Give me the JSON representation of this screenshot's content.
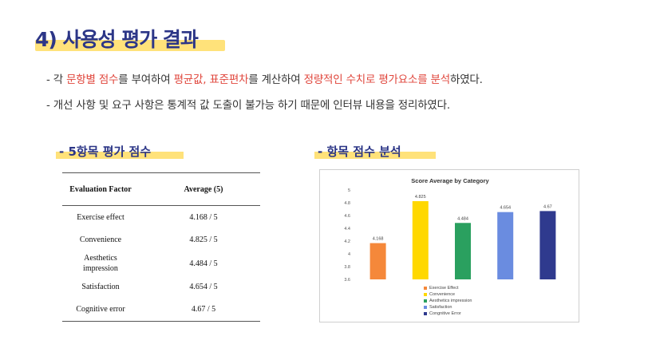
{
  "title": "4) 사용성 평가 결과",
  "bullets": {
    "b1": {
      "p1": "- 각 ",
      "p2": "문항별 점수",
      "p3": "를 부여하여 ",
      "p4": "평균값, 표준편차",
      "p5": "를 계산하여 ",
      "p6": "정량적인 수치로 평가요소를 분석",
      "p7": "하였다."
    },
    "b2": "- 개선 사항 및 요구 사항은 통계적 값 도출이 불가능 하기 때문에 인터뷰 내용을 정리하였다."
  },
  "section_left": "-  5항목 평가 점수",
  "section_right": "-  항목 점수 분석",
  "table": {
    "headers": [
      "Evaluation  Factor",
      "Average  (5)"
    ],
    "rows": [
      {
        "factor": "Exercise  effect",
        "avg": "4.168  /  5"
      },
      {
        "factor": "Convenience",
        "avg": "4.825  /  5"
      },
      {
        "factor": "Aesthetics\nimpression",
        "avg": "4.484  /  5"
      },
      {
        "factor": "Satisfaction",
        "avg": "4.654  /  5"
      },
      {
        "factor": "Cognitive  error",
        "avg": "4.67  /  5"
      }
    ]
  },
  "chart_data": {
    "type": "bar",
    "title": "Score Average by Category",
    "categories": [
      "Exercise Effect",
      "Convenience",
      "Aesthetics impression",
      "Satisfaction",
      "Congnitive Error"
    ],
    "values": [
      4.168,
      4.825,
      4.484,
      4.654,
      4.67
    ],
    "value_labels": [
      "4.168",
      "4.825",
      "4.484",
      "4.654",
      "4.67"
    ],
    "colors": [
      "#f5883a",
      "#ffd800",
      "#2aa05f",
      "#6a8ce0",
      "#2f3a8e"
    ],
    "ylim": [
      3.6,
      5
    ],
    "yticks": [
      3.6,
      3.8,
      4,
      4.2,
      4.4,
      4.6,
      4.8,
      5
    ],
    "ytick_labels": [
      "3.6",
      "3.8",
      "4",
      "4.2",
      "4.4",
      "4.6",
      "4.8",
      "5"
    ],
    "grid": false,
    "legend": "bottom"
  }
}
